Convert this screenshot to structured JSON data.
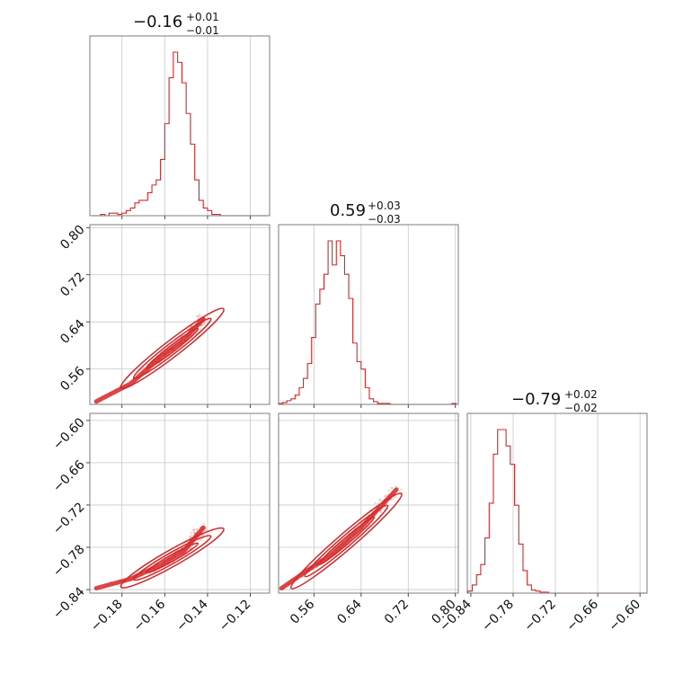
{
  "chart_data": {
    "type": "corner",
    "color": "#d62728",
    "parameters": [
      {
        "title": {
          "value": "−0.16",
          "plus": "+0.01",
          "minus": "−0.01"
        },
        "range": [
          -0.195,
          -0.111
        ],
        "ticks": [
          -0.18,
          -0.16,
          -0.14,
          -0.12
        ],
        "tick_labels": [
          "−0.18",
          "−0.16",
          "−0.14",
          "−0.12"
        ],
        "hist_bins": [
          -0.194,
          -0.192,
          -0.19,
          -0.188,
          -0.186,
          -0.184,
          -0.182,
          -0.18,
          -0.178,
          -0.176,
          -0.174,
          -0.172,
          -0.17,
          -0.168,
          -0.166,
          -0.164,
          -0.162,
          -0.16,
          -0.158,
          -0.156,
          -0.154,
          -0.152,
          -0.15,
          -0.148,
          -0.146,
          -0.144,
          -0.142,
          -0.14,
          -0.138,
          -0.136,
          -0.134,
          -0.132,
          -0.13,
          -0.128,
          -0.126,
          -0.124,
          -0.122,
          -0.12,
          -0.118,
          -0.116,
          -0.114,
          -0.112
        ],
        "hist_counts": [
          0,
          0,
          0.5,
          0,
          1,
          1,
          0.5,
          1,
          2,
          3,
          5,
          6,
          6,
          9,
          12,
          14,
          22,
          36,
          54,
          64,
          60,
          52,
          40,
          28,
          14,
          6,
          3,
          2,
          0.5,
          0.5,
          0,
          0,
          0,
          0,
          0,
          0,
          0,
          0,
          0,
          0,
          0
        ]
      },
      {
        "title": {
          "value": "0.59",
          "plus": "+0.03",
          "minus": "−0.03"
        },
        "range": [
          0.5,
          0.805
        ],
        "ticks": [
          0.56,
          0.64,
          0.72,
          0.8
        ],
        "tick_labels": [
          "0.56",
          "0.64",
          "0.72",
          "0.80"
        ],
        "hist_bins": [
          0.5,
          0.507,
          0.514,
          0.521,
          0.528,
          0.535,
          0.542,
          0.549,
          0.556,
          0.563,
          0.57,
          0.577,
          0.584,
          0.591,
          0.598,
          0.605,
          0.612,
          0.619,
          0.626,
          0.633,
          0.64,
          0.647,
          0.654,
          0.661,
          0.668,
          0.675,
          0.682,
          0.689,
          0.696,
          0.703,
          0.71,
          0.717,
          0.724,
          0.731,
          0.738,
          0.745,
          0.752,
          0.759,
          0.766,
          0.773,
          0.78,
          0.787,
          0.794,
          0.801
        ],
        "hist_counts": [
          0.5,
          1,
          2,
          3,
          5,
          9,
          14,
          22,
          36,
          54,
          62,
          70,
          88,
          75,
          88,
          80,
          70,
          57,
          33,
          23,
          19,
          9,
          3,
          1.5,
          0.5,
          0.5,
          0.5,
          0,
          0,
          0,
          0,
          0,
          0,
          0,
          0,
          0,
          0,
          0,
          0,
          0,
          0,
          0,
          0.5
        ]
      },
      {
        "title": {
          "value": "−0.79",
          "plus": "+0.02",
          "minus": "−0.02"
        },
        "range": [
          -0.845,
          -0.59
        ],
        "ticks": [
          -0.84,
          -0.78,
          -0.72,
          -0.66,
          -0.6
        ],
        "tick_labels": [
          "−0.84",
          "−0.78",
          "−0.72",
          "−0.66",
          "−0.60"
        ],
        "hist_bins": [
          -0.844,
          -0.838,
          -0.832,
          -0.826,
          -0.82,
          -0.814,
          -0.808,
          -0.802,
          -0.796,
          -0.79,
          -0.784,
          -0.778,
          -0.772,
          -0.766,
          -0.76,
          -0.754,
          -0.748,
          -0.742,
          -0.736,
          -0.73,
          -0.724,
          -0.718,
          -0.712,
          -0.706,
          -0.7,
          -0.694,
          -0.688,
          -0.682,
          -0.676,
          -0.67,
          -0.664,
          -0.658,
          -0.652,
          -0.646,
          -0.64,
          -0.634,
          -0.628,
          -0.622,
          -0.616,
          -0.61,
          -0.604,
          -0.598,
          -0.592
        ],
        "hist_counts": [
          1,
          4,
          9,
          14,
          27,
          44,
          68,
          80,
          80,
          72,
          63,
          43,
          24,
          11,
          4,
          1.5,
          1,
          0.5,
          0.5,
          0,
          0,
          0,
          0,
          0,
          0,
          0,
          0,
          0,
          0,
          0,
          0,
          0,
          0,
          0,
          0,
          0,
          0,
          0,
          0,
          0,
          0,
          0
        ]
      }
    ],
    "pairs": [
      {
        "x_param": 0,
        "y_param": 1,
        "trend": {
          "x": [
            -0.192,
            -0.176,
            -0.162,
            -0.151,
            -0.142
          ],
          "y": [
            0.505,
            0.535,
            0.58,
            0.61,
            0.645
          ]
        }
      },
      {
        "x_param": 0,
        "y_param": 2,
        "trend": {
          "x": [
            -0.192,
            -0.176,
            -0.162,
            -0.151,
            -0.142
          ],
          "y": [
            -0.838,
            -0.825,
            -0.805,
            -0.785,
            -0.752
          ]
        }
      },
      {
        "x_param": 1,
        "y_param": 2,
        "trend": {
          "x": [
            0.505,
            0.545,
            0.59,
            0.64,
            0.7
          ],
          "y": [
            -0.838,
            -0.815,
            -0.79,
            -0.752,
            -0.698
          ]
        }
      }
    ],
    "grid": true
  }
}
